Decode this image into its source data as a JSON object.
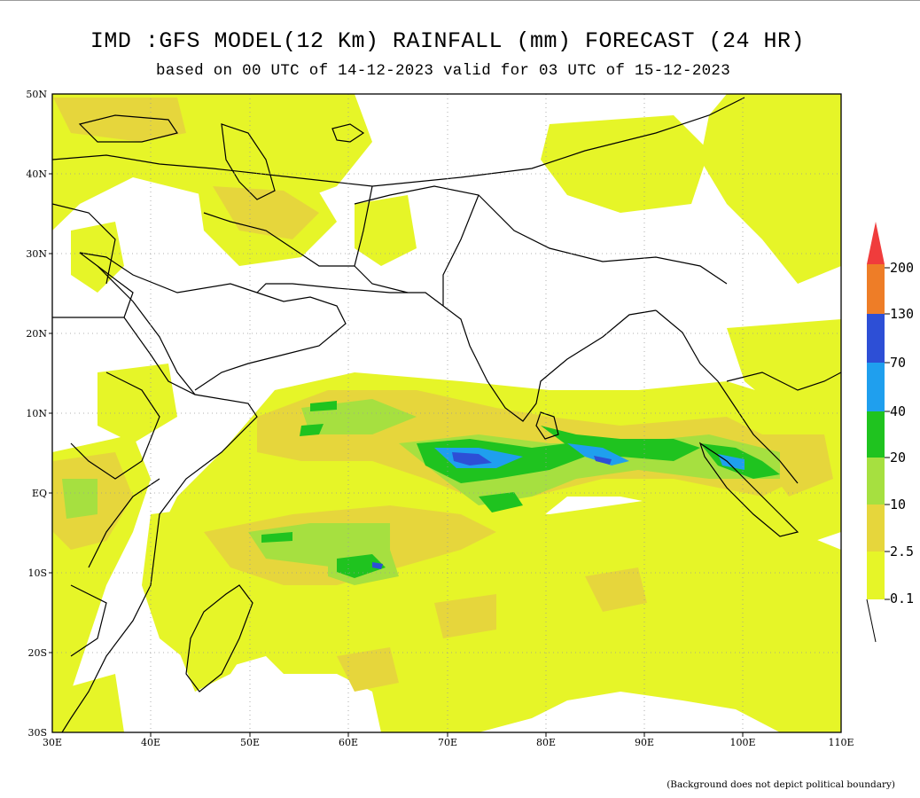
{
  "title": "IMD :GFS MODEL(12 Km) RAINFALL (mm) FORECAST (24 HR)",
  "subtitle": "based on 00 UTC of 14-12-2023 valid for 03 UTC of 15-12-2023",
  "footnote": "(Background does not depict political boundary)",
  "map": {
    "lon_range": [
      30,
      110
    ],
    "lat_range": [
      -30,
      50
    ],
    "lon_ticks": [
      "30E",
      "40E",
      "50E",
      "60E",
      "70E",
      "80E",
      "90E",
      "100E",
      "110E"
    ],
    "lat_ticks": [
      "30S",
      "20S",
      "10S",
      "EQ",
      "10N",
      "20N",
      "30N",
      "40N",
      "50N"
    ],
    "grid": "dotted"
  },
  "colorbar": {
    "levels": [
      "0.1",
      "2.5",
      "10",
      "20",
      "40",
      "70",
      "130",
      "200"
    ],
    "colors": [
      "#e6f528",
      "#e6d63c",
      "#a6e040",
      "#1fc31f",
      "#1f9fee",
      "#2d4fd6",
      "#ee7d27",
      "#f03c3c"
    ]
  }
}
